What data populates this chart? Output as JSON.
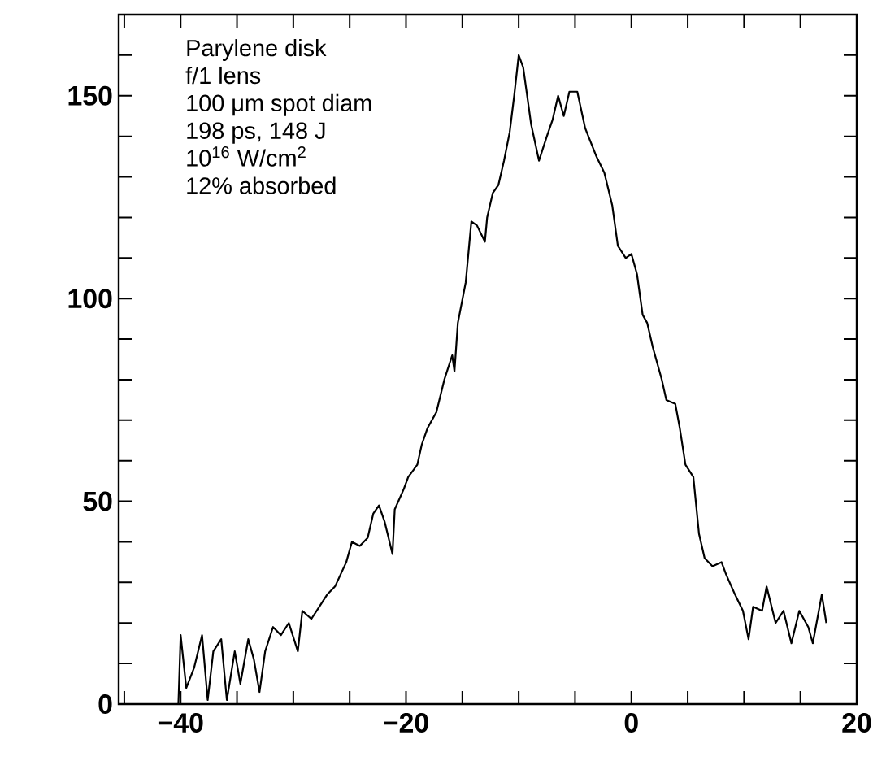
{
  "chart_data": {
    "type": "line",
    "annotations": [
      "Parylene disk",
      "f/1 lens",
      "100 μm spot diam",
      "198 ps, 148 J",
      "10$^{16}$ W/cm$^{2}$",
      "12% absorbed"
    ],
    "xlim": [
      -45.5,
      20
    ],
    "ylim": [
      0,
      170
    ],
    "xticks": [
      {
        "value": -45,
        "label": null
      },
      {
        "value": -40,
        "label": "−40"
      },
      {
        "value": -35,
        "label": null
      },
      {
        "value": -30,
        "label": null
      },
      {
        "value": -25,
        "label": null
      },
      {
        "value": -20,
        "label": "−20"
      },
      {
        "value": -15,
        "label": null
      },
      {
        "value": -10,
        "label": null
      },
      {
        "value": -5,
        "label": null
      },
      0,
      {
        "value": 5,
        "label": null
      },
      {
        "value": 10,
        "label": null
      },
      {
        "value": 15,
        "label": null
      },
      20
    ],
    "yticks": [
      0,
      {
        "value": 10,
        "label": null
      },
      {
        "value": 20,
        "label": null
      },
      {
        "value": 30,
        "label": null
      },
      {
        "value": 40,
        "label": null
      },
      50,
      {
        "value": 60,
        "label": null
      },
      {
        "value": 70,
        "label": null
      },
      {
        "value": 80,
        "label": null
      },
      {
        "value": 90,
        "label": null
      },
      100,
      {
        "value": 110,
        "label": null
      },
      {
        "value": 120,
        "label": null
      },
      {
        "value": 130,
        "label": null
      },
      {
        "value": 140,
        "label": null
      },
      150,
      {
        "value": 160,
        "label": null
      }
    ],
    "color": "#000000",
    "x": [
      -40.2,
      -40.0,
      -39.5,
      -38.8,
      -38.1,
      -37.6,
      -37.1,
      -36.4,
      -35.9,
      -35.2,
      -34.7,
      -34.0,
      -33.5,
      -33.0,
      -32.5,
      -31.8,
      -31.1,
      -30.4,
      -29.6,
      -29.2,
      -28.4,
      -27.7,
      -27.0,
      -26.3,
      -25.8,
      -25.3,
      -24.8,
      -24.1,
      -23.4,
      -22.9,
      -22.4,
      -21.9,
      -21.2,
      -21.0,
      -20.2,
      -19.8,
      -19.0,
      -18.6,
      -18.1,
      -17.3,
      -16.6,
      -15.9,
      -15.7,
      -15.4,
      -14.7,
      -14.2,
      -13.7,
      -13.0,
      -12.8,
      -12.3,
      -11.8,
      -11.3,
      -10.8,
      -10.4,
      -10.0,
      -9.6,
      -8.9,
      -8.2,
      -7.5,
      -7.0,
      -6.5,
      -6.0,
      -5.5,
      -4.8,
      -4.1,
      -3.1,
      -2.4,
      -1.7,
      -1.2,
      -0.5,
      0.0,
      0.5,
      1.0,
      1.4,
      1.9,
      2.7,
      3.1,
      3.9,
      4.3,
      4.8,
      5.5,
      6.0,
      6.5,
      7.2,
      8.0,
      8.4,
      9.2,
      9.9,
      10.4,
      10.8,
      11.6,
      12.0,
      12.8,
      13.5,
      14.2,
      14.9,
      15.7,
      16.1,
      16.9,
      17.3
    ],
    "values": [
      0,
      17,
      4,
      9,
      17,
      1,
      13,
      16,
      1,
      13,
      5,
      16,
      11,
      3,
      13,
      19,
      17,
      20,
      13,
      23,
      21,
      24,
      27,
      29,
      32,
      35,
      40,
      39,
      41,
      47,
      49,
      45,
      37,
      48,
      53,
      56,
      59,
      64,
      68,
      72,
      80,
      86,
      82,
      94,
      104,
      119,
      118,
      114,
      120,
      126,
      128,
      134,
      141,
      150,
      160,
      157,
      143,
      134,
      140,
      144,
      150,
      145,
      151,
      151,
      142,
      135,
      131,
      123,
      113,
      110,
      111,
      106,
      96,
      94,
      88,
      80,
      75,
      74,
      68,
      59,
      56,
      42,
      36,
      34,
      35,
      32,
      27,
      23,
      16,
      24,
      23,
      29,
      20,
      23,
      15,
      23,
      19,
      15,
      27,
      20
    ]
  }
}
